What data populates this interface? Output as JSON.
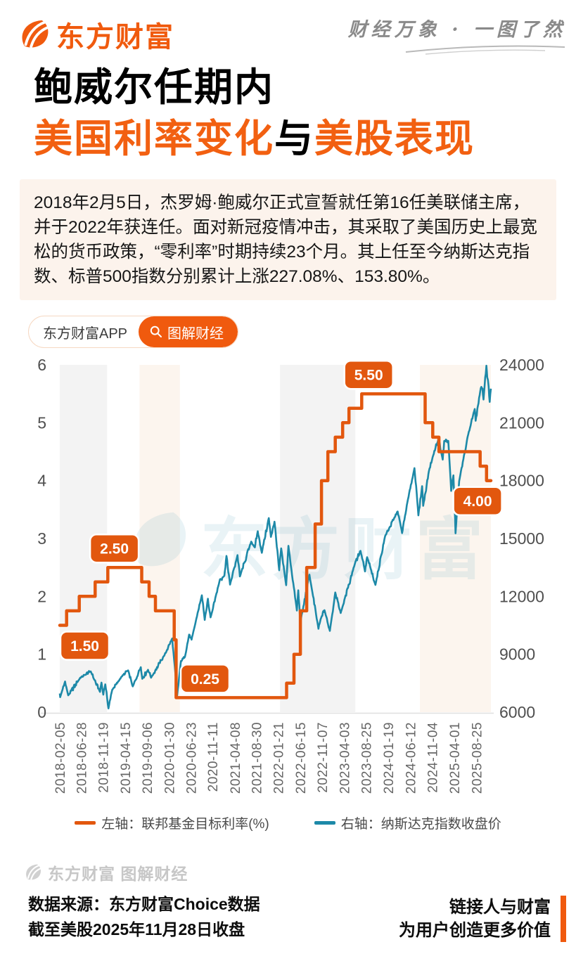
{
  "header": {
    "brand": "东方财富",
    "tagline": "财经万象 · 一图了然"
  },
  "title": {
    "line1": "鲍威尔任期内",
    "line2_part1": "美国利率变化",
    "line2_part2": "与",
    "line2_part3": "美股表现"
  },
  "intro": {
    "text": "2018年2月5日，杰罗姆·鲍威尔正式宣誓就任第16任美联储主席，并于2022年获连任。面对新冠疫情冲击，其采取了美国历史上最宽松的货币政策，“零利率”时期持续23个月。其上任至今纳斯达克指数、标普500指数分别累计上涨227.08%、153.80%。"
  },
  "app_badge": {
    "app_label": "东方财富APP",
    "cta_label": "图解财经"
  },
  "watermark": {
    "chart_text": "东方财富",
    "footer_text": "东方财富 图解财经"
  },
  "footer": {
    "source_line1": "数据来源：东方财富Choice数据",
    "source_line2": "截至美股2025年11月28日收盘",
    "slogan_line1": "链接人与财富",
    "slogan_line2": "为用户创造更多价值"
  },
  "colors": {
    "brand_orange": "#f05a0e",
    "chart_orange": "#e2570e",
    "teal": "#1d89a8",
    "intro_bg": "#fcf3ec",
    "band_gray": "#f3f3f3",
    "band_cream": "#fcf5ee",
    "axis_text": "#4f4f4f",
    "x_tick_text": "#666666",
    "chart_watermark_blue": "#2f8fb0"
  },
  "chart_data": {
    "type": "line",
    "title": "",
    "x_axis": {
      "start": "2018-02-05",
      "end": "2025-11-28",
      "tick_labels": [
        "2018-02-05",
        "2018-06-28",
        "2018-11-19",
        "2019-04-15",
        "2019-09-06",
        "2020-01-30",
        "2020-06-23",
        "2020-11-11",
        "2021-04-08",
        "2021-08-30",
        "2022-01-21",
        "2022-06-15",
        "2022-11-07",
        "2023-04-03",
        "2023-08-25",
        "2024-01-19",
        "2024-06-12",
        "2024-11-04",
        "2025-04-01",
        "2025-08-25"
      ]
    },
    "left_axis": {
      "title": "联邦基金目标利率(%)",
      "min": 0,
      "max": 6,
      "ticks": [
        0,
        1,
        2,
        3,
        4,
        5,
        6
      ]
    },
    "right_axis": {
      "title": "纳斯达克指数收盘价",
      "min": 6000,
      "max": 24000,
      "ticks": [
        6000,
        9000,
        12000,
        15000,
        18000,
        21000,
        24000
      ]
    },
    "grid": false,
    "legend_position": "bottom",
    "bands": [
      {
        "from": "2018-02-05",
        "to": "2018-12-15",
        "tone": "gray"
      },
      {
        "from": "2019-07-18",
        "to": "2020-04-10",
        "tone": "cream"
      },
      {
        "from": "2022-02-01",
        "to": "2023-06-15",
        "tone": "gray"
      },
      {
        "from": "2024-08-15",
        "to": "2025-11-28",
        "tone": "cream"
      }
    ],
    "series": [
      {
        "name": "左轴：联邦基金目标利率(%)",
        "axis": "left",
        "style": "step",
        "color": "#e2570e",
        "points": [
          [
            "2018-02-05",
            1.5
          ],
          [
            "2018-03-22",
            1.75
          ],
          [
            "2018-06-14",
            2.0
          ],
          [
            "2018-09-27",
            2.25
          ],
          [
            "2018-12-20",
            2.5
          ],
          [
            "2019-08-01",
            2.25
          ],
          [
            "2019-09-19",
            2.0
          ],
          [
            "2019-10-31",
            1.75
          ],
          [
            "2020-03-03",
            1.25
          ],
          [
            "2020-03-16",
            0.25
          ],
          [
            "2022-03-17",
            0.5
          ],
          [
            "2022-05-05",
            1.0
          ],
          [
            "2022-06-16",
            1.75
          ],
          [
            "2022-07-28",
            2.5
          ],
          [
            "2022-09-22",
            3.25
          ],
          [
            "2022-11-03",
            4.0
          ],
          [
            "2022-12-15",
            4.5
          ],
          [
            "2023-02-02",
            4.75
          ],
          [
            "2023-03-23",
            5.0
          ],
          [
            "2023-05-04",
            5.25
          ],
          [
            "2023-07-27",
            5.5
          ],
          [
            "2024-09-19",
            5.0
          ],
          [
            "2024-11-08",
            4.75
          ],
          [
            "2024-12-19",
            4.5
          ],
          [
            "2025-09-18",
            4.25
          ],
          [
            "2025-10-30",
            4.0
          ],
          [
            "2025-11-28",
            4.0
          ]
        ]
      },
      {
        "name": "右轴：纳斯达克指数收盘价",
        "axis": "right",
        "style": "line",
        "color": "#1d89a8",
        "points": [
          [
            "2018-02-05",
            6967
          ],
          [
            "2018-02-08",
            6777
          ],
          [
            "2018-03-12",
            7588
          ],
          [
            "2018-04-02",
            6870
          ],
          [
            "2018-06-20",
            7781
          ],
          [
            "2018-07-25",
            7932
          ],
          [
            "2018-08-29",
            8110
          ],
          [
            "2018-10-29",
            7050
          ],
          [
            "2018-11-08",
            7531
          ],
          [
            "2018-11-20",
            6909
          ],
          [
            "2018-12-03",
            7441
          ],
          [
            "2018-12-24",
            6193
          ],
          [
            "2019-01-18",
            7157
          ],
          [
            "2019-03-21",
            7839
          ],
          [
            "2019-05-03",
            8164
          ],
          [
            "2019-06-03",
            7333
          ],
          [
            "2019-07-26",
            8330
          ],
          [
            "2019-08-05",
            7726
          ],
          [
            "2019-09-12",
            8194
          ],
          [
            "2019-10-02",
            7785
          ],
          [
            "2019-12-31",
            8973
          ],
          [
            "2020-02-19",
            9817
          ],
          [
            "2020-03-23",
            6861
          ],
          [
            "2020-04-17",
            8650
          ],
          [
            "2020-05-13",
            8863
          ],
          [
            "2020-06-10",
            10020
          ],
          [
            "2020-06-26",
            9757
          ],
          [
            "2020-09-02",
            12056
          ],
          [
            "2020-09-21",
            10779
          ],
          [
            "2020-10-12",
            11876
          ],
          [
            "2020-10-30",
            10912
          ],
          [
            "2020-12-31",
            12888
          ],
          [
            "2021-01-29",
            13071
          ],
          [
            "2021-02-12",
            14095
          ],
          [
            "2021-03-08",
            12609
          ],
          [
            "2021-04-26",
            14138
          ],
          [
            "2021-05-12",
            13032
          ],
          [
            "2021-07-26",
            14840
          ],
          [
            "2021-08-19",
            14541
          ],
          [
            "2021-09-07",
            15374
          ],
          [
            "2021-10-04",
            14255
          ],
          [
            "2021-11-19",
            16057
          ],
          [
            "2021-12-03",
            15085
          ],
          [
            "2021-12-27",
            15871
          ],
          [
            "2022-01-27",
            13352
          ],
          [
            "2022-02-09",
            14490
          ],
          [
            "2022-03-14",
            12581
          ],
          [
            "2022-03-29",
            14620
          ],
          [
            "2022-05-24",
            11264
          ],
          [
            "2022-06-02",
            12316
          ],
          [
            "2022-06-16",
            10646
          ],
          [
            "2022-08-15",
            13128
          ],
          [
            "2022-10-14",
            10321
          ],
          [
            "2022-11-01",
            10890
          ],
          [
            "2022-11-23",
            11285
          ],
          [
            "2022-12-28",
            10213
          ],
          [
            "2023-02-02",
            12200
          ],
          [
            "2023-03-10",
            11139
          ],
          [
            "2023-06-15",
            13782
          ],
          [
            "2023-07-19",
            14358
          ],
          [
            "2023-08-18",
            13291
          ],
          [
            "2023-09-01",
            14032
          ],
          [
            "2023-10-26",
            12595
          ],
          [
            "2023-12-28",
            15099
          ],
          [
            "2024-02-29",
            16092
          ],
          [
            "2024-03-21",
            16401
          ],
          [
            "2024-04-19",
            15282
          ],
          [
            "2024-05-28",
            17020
          ],
          [
            "2024-07-10",
            18647
          ],
          [
            "2024-08-05",
            16200
          ],
          [
            "2024-08-30",
            17713
          ],
          [
            "2024-09-06",
            16691
          ],
          [
            "2024-10-14",
            18502
          ],
          [
            "2024-11-11",
            19299
          ],
          [
            "2024-12-16",
            20174
          ],
          [
            "2025-01-13",
            19088
          ],
          [
            "2025-01-23",
            20053
          ],
          [
            "2025-02-19",
            20056
          ],
          [
            "2025-03-10",
            17468
          ],
          [
            "2025-03-25",
            18272
          ],
          [
            "2025-04-08",
            15268
          ],
          [
            "2025-05-02",
            17978
          ],
          [
            "2025-05-30",
            19114
          ],
          [
            "2025-06-27",
            20273
          ],
          [
            "2025-08-13",
            21713
          ],
          [
            "2025-08-19",
            21101
          ],
          [
            "2025-09-22",
            22789
          ],
          [
            "2025-10-03",
            22780
          ],
          [
            "2025-10-10",
            22204
          ],
          [
            "2025-10-29",
            23958
          ],
          [
            "2025-11-04",
            23348
          ],
          [
            "2025-11-13",
            22870
          ],
          [
            "2025-11-20",
            22078
          ],
          [
            "2025-11-28",
            22765
          ]
        ]
      }
    ],
    "annotations": [
      {
        "label": "1.50",
        "date": "2018-07-20",
        "value": 1.5,
        "position": "below"
      },
      {
        "label": "2.50",
        "date": "2019-02-01",
        "value": 2.5,
        "position": "above"
      },
      {
        "label": "0.25",
        "date": "2020-09-23",
        "value": 0.25,
        "position": "above"
      },
      {
        "label": "5.50",
        "date": "2023-09-11",
        "value": 5.5,
        "position": "above"
      },
      {
        "label": "4.00",
        "date": "2025-09-01",
        "value": 4.0,
        "position": "below"
      }
    ]
  }
}
